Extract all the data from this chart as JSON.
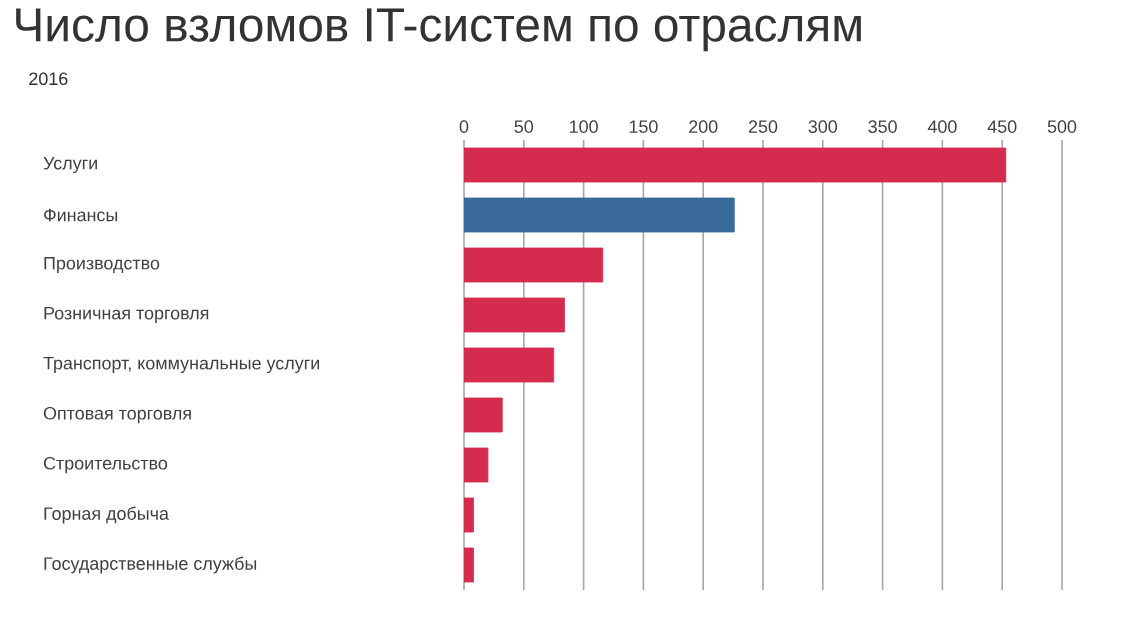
{
  "chart_data": {
    "type": "bar",
    "orientation": "horizontal",
    "title": "Число взломов IT-систем по отраслям",
    "subtitle": "2016",
    "categories": [
      "Услуги",
      "Финансы",
      "Производство",
      "Розничная торговля",
      "Транспорт, коммунальные услуги",
      "Оптовая торговля",
      "Строительство",
      "Горная добыча",
      "Государственные службы"
    ],
    "values": [
      453,
      226,
      116,
      84,
      75,
      32,
      20,
      8,
      8
    ],
    "colors": [
      "#d42b4f",
      "#3a6a9a",
      "#d42b4f",
      "#d42b4f",
      "#d42b4f",
      "#d42b4f",
      "#d42b4f",
      "#d42b4f",
      "#d42b4f"
    ],
    "xlim": [
      0,
      500
    ],
    "xticks": [
      0,
      50,
      100,
      150,
      200,
      250,
      300,
      350,
      400,
      450,
      500
    ],
    "grid": "x"
  }
}
